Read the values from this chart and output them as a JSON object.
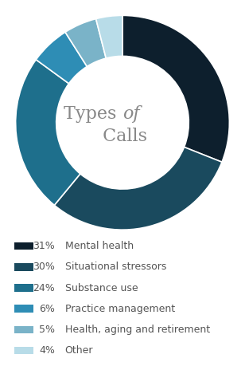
{
  "slices": [
    31,
    30,
    24,
    6,
    5,
    4
  ],
  "labels": [
    "Mental health",
    "Situational stressors",
    "Substance use",
    "Practice management",
    "Health, aging and retirement",
    "Other"
  ],
  "percentages": [
    "31%",
    "30%",
    "24%",
    "6%",
    "5%",
    "4%"
  ],
  "colors": [
    "#0d1f2d",
    "#1a4a5e",
    "#1e6f8c",
    "#2e8db5",
    "#7ab3c8",
    "#b8dce8"
  ],
  "donut_width": 0.38,
  "startangle": 90,
  "background_color": "#ffffff",
  "legend_text_color": "#555555",
  "title_color": "#888888",
  "title_fontsize": 16,
  "legend_fontsize": 9,
  "pct_fontsize": 9
}
